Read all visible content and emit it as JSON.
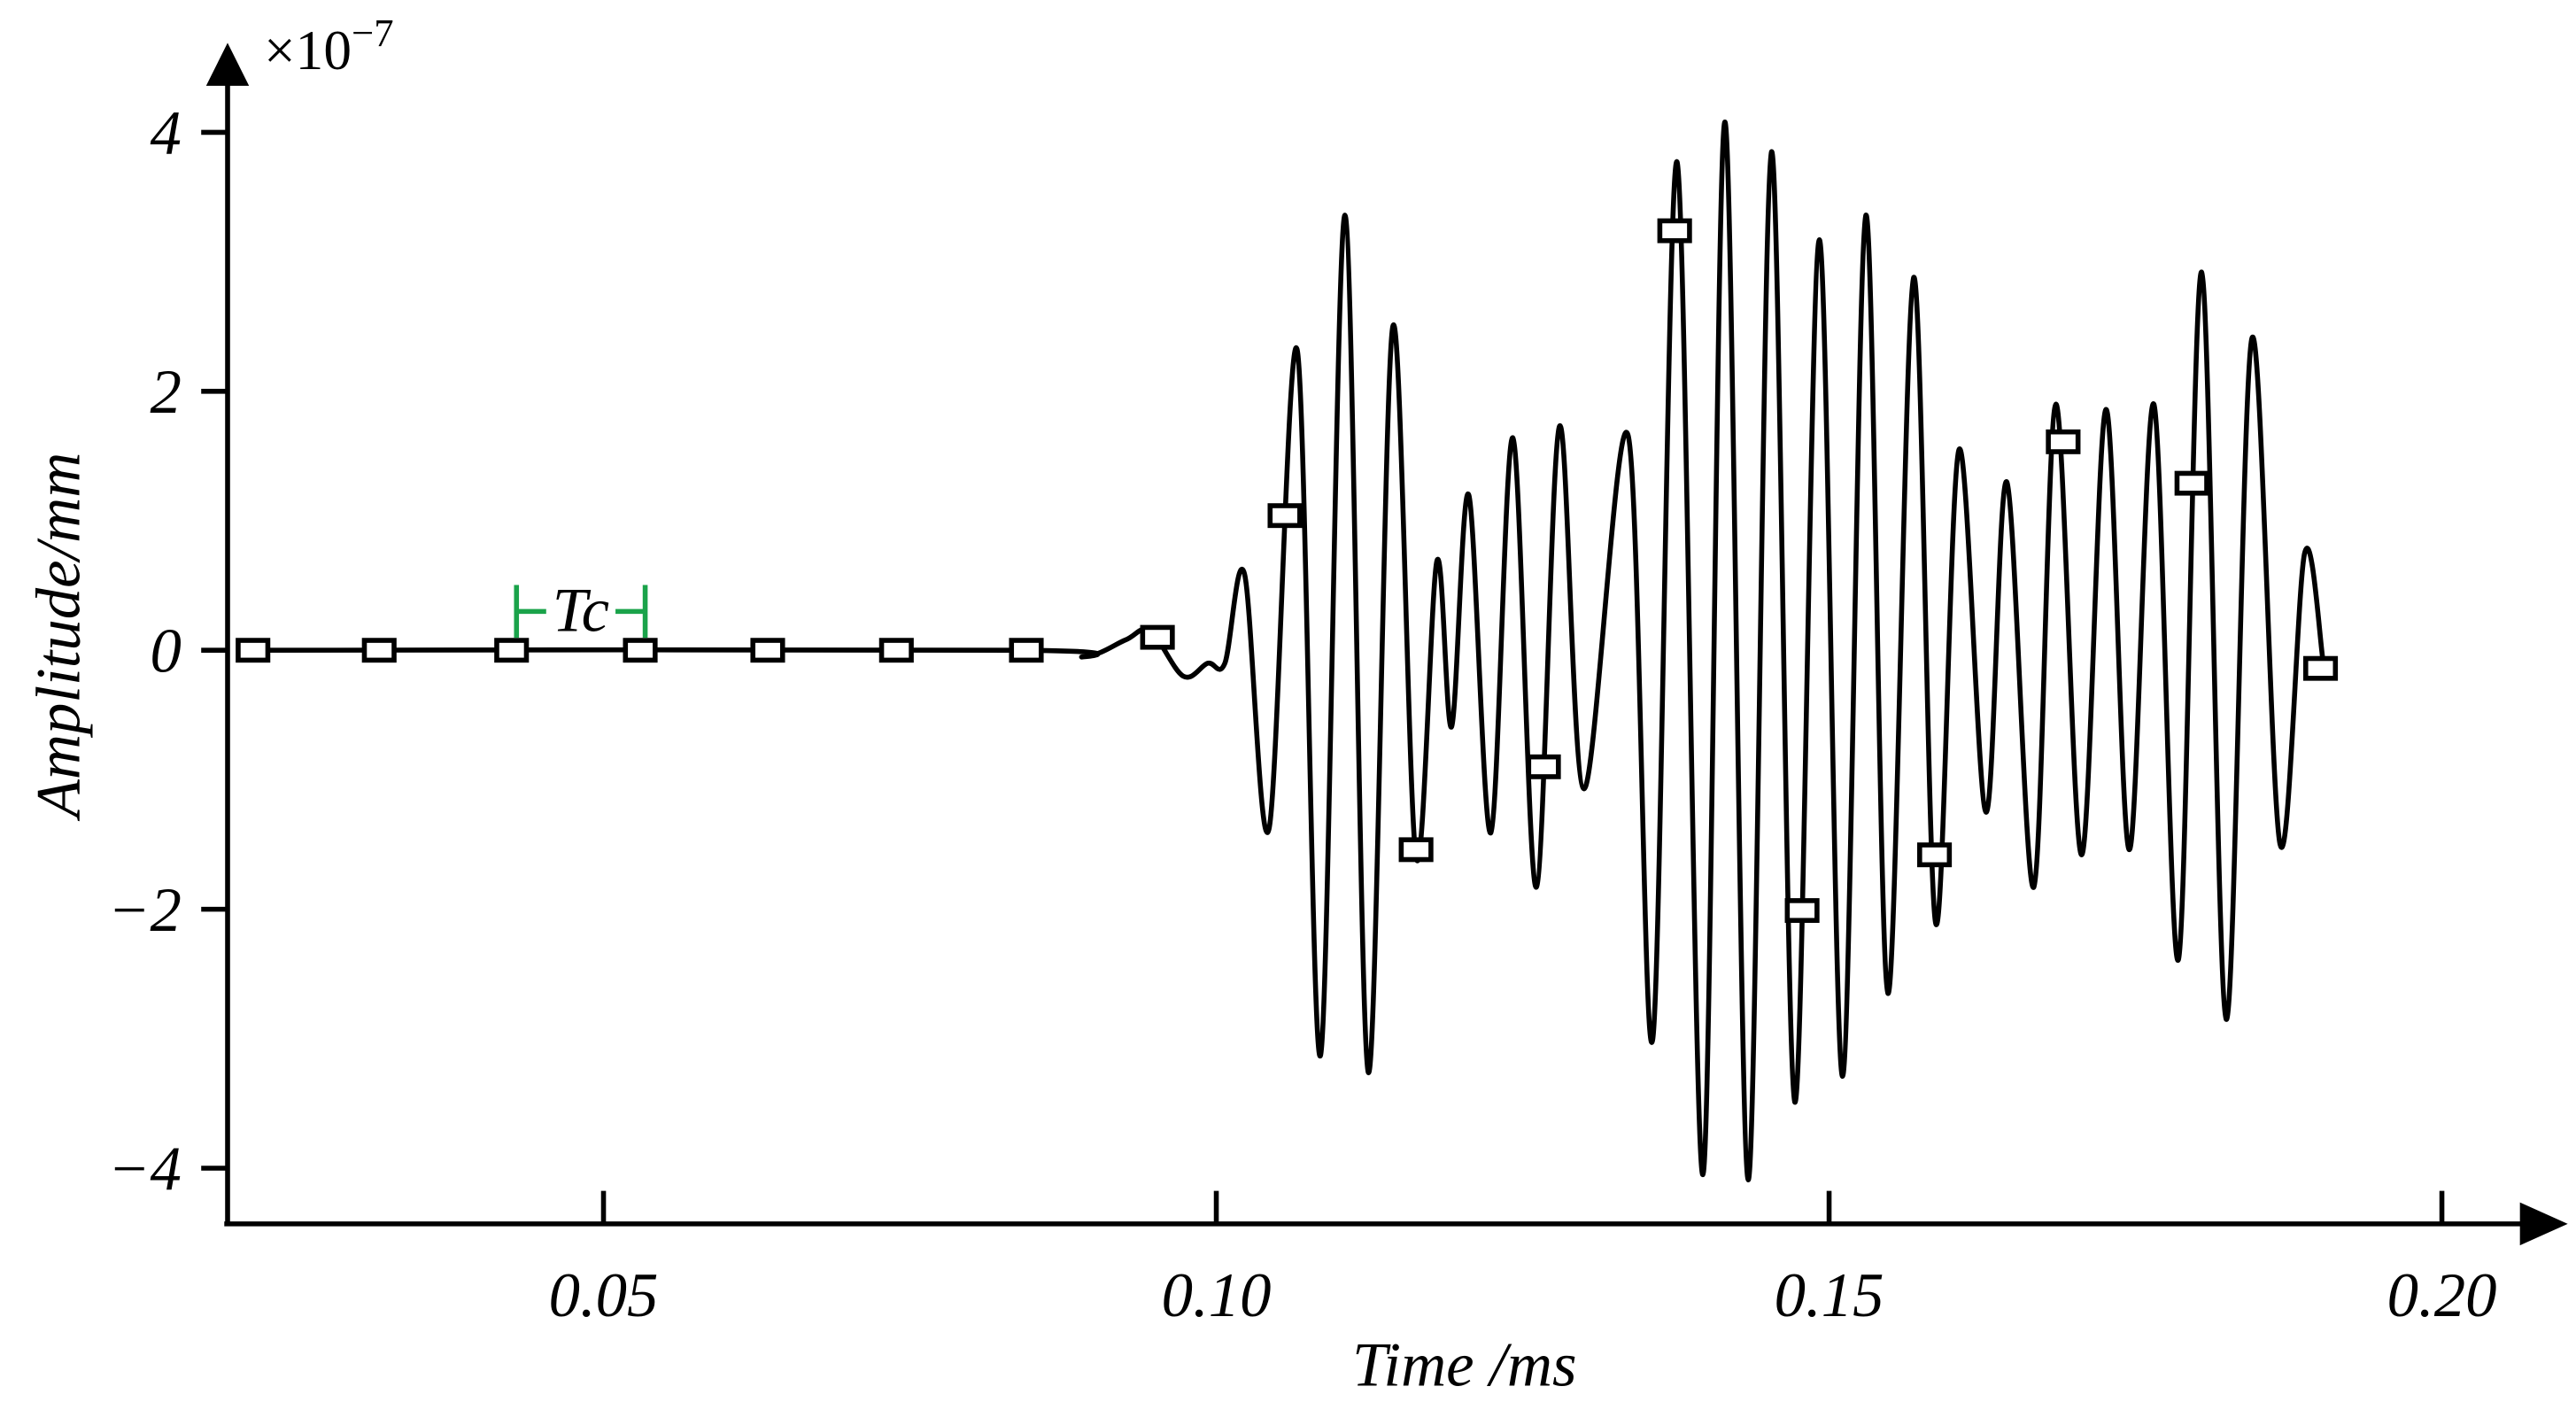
{
  "chart_data": {
    "type": "line",
    "y_multiplier": {
      "base": "×10",
      "exponent": "−7"
    },
    "xlabel": "Time /ms",
    "ylabel": "Amplitude/mm",
    "xlim": [
      0.02,
      0.21
    ],
    "ylim": [
      -4.43,
      4.64
    ],
    "xticks": [
      0.05,
      {
        "value": 0.1,
        "label": "0.10"
      },
      0.15,
      {
        "value": 0.2,
        "label": "0.20"
      }
    ],
    "yticks": [
      {
        "value": -4,
        "label": "−4"
      },
      {
        "value": -2,
        "label": "−2"
      },
      0,
      2,
      4
    ],
    "grid": false,
    "series": [
      {
        "color": "#000000",
        "marker": "none",
        "x": [
          0.0207,
          0.0839,
          0.0892,
          0.0926,
          0.0946,
          0.0973,
          0.0993,
          0.1007,
          0.1023,
          0.1043,
          0.1066,
          0.1085,
          0.1105,
          0.1124,
          0.1144,
          0.1163,
          0.118,
          0.1192,
          0.1206,
          0.1224,
          0.1242,
          0.1261,
          0.128,
          0.13,
          0.1336,
          0.1356,
          0.1376,
          0.1397,
          0.1415,
          0.1434,
          0.1453,
          0.1472,
          0.1492,
          0.1511,
          0.153,
          0.1548,
          0.1569,
          0.1587,
          0.1606,
          0.1628,
          0.1645,
          0.1667,
          0.1685,
          0.1706,
          0.1726,
          0.1745,
          0.1765,
          0.1785,
          0.1804,
          0.1824,
          0.1845,
          0.1868,
          0.1888,
          0.1903
        ],
        "values": [
          0,
          0,
          -0.05,
          0.08,
          0.15,
          -0.2,
          -0.1,
          -0.1,
          0.59,
          -1.38,
          2.32,
          -3.13,
          3.36,
          -3.26,
          2.5,
          -1.6,
          0.69,
          -0.59,
          1.2,
          -1.41,
          1.64,
          -1.83,
          1.73,
          -1.07,
          1.66,
          -3.01,
          3.77,
          -4.05,
          4.08,
          -4.09,
          3.85,
          -3.49,
          3.17,
          -3.29,
          3.36,
          -2.65,
          2.88,
          -2.11,
          1.55,
          -1.25,
          1.3,
          -1.83,
          1.9,
          -1.58,
          1.86,
          -1.54,
          1.9,
          -2.39,
          2.92,
          -2.85,
          2.41,
          -1.5,
          0.75,
          -0.08
        ]
      },
      {
        "color": "#000000",
        "marker": "square",
        "line": false,
        "x": [
          0.0214,
          0.0317,
          0.0425,
          0.053,
          0.0634,
          0.0739,
          0.0845,
          0.0952,
          0.1056,
          0.1163,
          0.1267,
          0.1374,
          0.1478,
          0.1586,
          0.1691,
          0.1796,
          0.1901
        ],
        "values": [
          0,
          0,
          0,
          0,
          0,
          0,
          0,
          0.1,
          1.04,
          -1.54,
          -0.9,
          3.24,
          -2.01,
          -1.58,
          1.61,
          1.29,
          -0.14
        ]
      }
    ],
    "annotations": [
      {
        "text": "Tc",
        "x": [
          0.0429,
          0.0534
        ],
        "y": 0.3,
        "color": "#1aa34a"
      }
    ]
  }
}
